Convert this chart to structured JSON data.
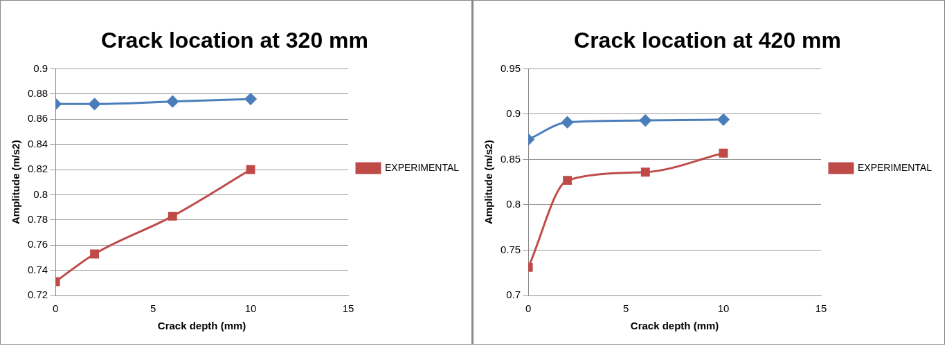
{
  "chart_data": [
    {
      "type": "line",
      "title": "Crack location at 320 mm",
      "xlabel": "Crack depth (mm)",
      "ylabel": "Amplitude (m/s2)",
      "x": [
        0,
        2,
        6,
        10
      ],
      "xlim": [
        0,
        15
      ],
      "xticks": [
        0,
        5,
        10,
        15
      ],
      "ylim": [
        0.72,
        0.9
      ],
      "yticks": [
        0.72,
        0.74,
        0.76,
        0.78,
        0.8,
        0.82,
        0.84,
        0.86,
        0.88,
        0.9
      ],
      "grid": "y",
      "legend": "right",
      "series": [
        {
          "color": "#4a7ebb",
          "marker": "diamond",
          "values": [
            0.872,
            0.872,
            0.874,
            0.876
          ]
        },
        {
          "name": "EXPERIMENTAL",
          "color": "#be4b48",
          "marker": "square",
          "values": [
            0.731,
            0.753,
            0.783,
            0.82
          ]
        }
      ]
    },
    {
      "type": "line",
      "title": "Crack location at 420 mm",
      "xlabel": "Crack depth (mm)",
      "ylabel": "Amplitude (m/s2)",
      "x": [
        0,
        2,
        6,
        10
      ],
      "xlim": [
        0,
        15
      ],
      "xticks": [
        0,
        5,
        10,
        15
      ],
      "ylim": [
        0.7,
        0.95
      ],
      "yticks": [
        0.7,
        0.75,
        0.8,
        0.85,
        0.9,
        0.95
      ],
      "grid": "y",
      "legend": "right",
      "series": [
        {
          "color": "#4a7ebb",
          "marker": "diamond",
          "values": [
            0.872,
            0.891,
            0.893,
            0.894
          ]
        },
        {
          "name": "EXPERIMENTAL",
          "color": "#be4b48",
          "marker": "square",
          "values": [
            0.731,
            0.827,
            0.836,
            0.857
          ]
        }
      ]
    }
  ]
}
